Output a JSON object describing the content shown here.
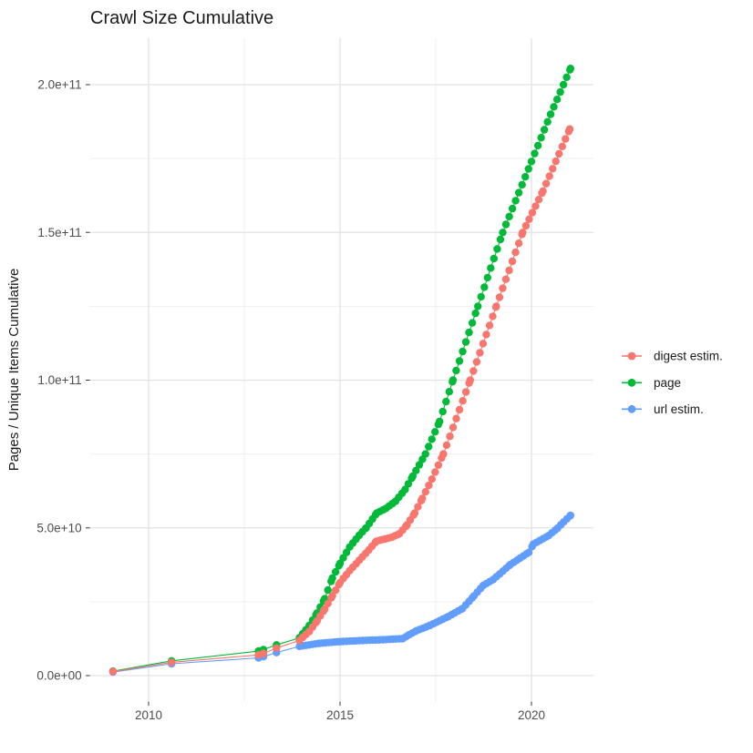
{
  "title": "Crawl Size Cumulative",
  "y_axis": {
    "label": "Pages / Unique Items Cumulative",
    "ticks": [
      {
        "label": "0.0e+00",
        "value": 0
      },
      {
        "label": "5.0e+10",
        "value": 50000000000.0
      },
      {
        "label": "1.0e+11",
        "value": 100000000000.0
      },
      {
        "label": "1.5e+11",
        "value": 150000000000.0
      },
      {
        "label": "2.0e+11",
        "value": 200000000000.0
      }
    ]
  },
  "x_axis": {
    "ticks": [
      {
        "label": "2010",
        "year": 2010
      },
      {
        "label": "2015",
        "year": 2015
      },
      {
        "label": "2020",
        "year": 2020
      }
    ],
    "minor_years": [
      2012.5,
      2017.5
    ]
  },
  "legend": {
    "items": [
      {
        "label": "digest estim.",
        "series": "digest estim.",
        "color": "#F8766D"
      },
      {
        "label": "page",
        "series": "page",
        "color": "#00BA38"
      },
      {
        "label": "url estim.",
        "series": "url estim.",
        "color": "#619CFF"
      }
    ]
  },
  "colors": {
    "digest": "#F8766D",
    "page": "#00BA38",
    "url": "#619CFF",
    "grid_major": "#e2e2e2",
    "grid_minor": "#efefef",
    "tick_mark": "#333333"
  },
  "chart_data": {
    "type": "scatter-line",
    "title": "Crawl Size Cumulative",
    "xlabel": "",
    "ylabel": "Pages / Unique Items Cumulative",
    "x_unit": "year (crawl date)",
    "xlim": [
      2008.47,
      2021.62
    ],
    "ylim": [
      0,
      215700000000.0
    ],
    "grid": true,
    "legend_position": "right",
    "dense_points_from": 2013.94,
    "dense_point_interval_years": 0.084,
    "series": [
      {
        "name": "digest estim.",
        "color": "#F8766D",
        "points": [
          [
            2009.07,
            1400000000.0
          ],
          [
            2010.6,
            4500000000.0
          ],
          [
            2012.87,
            7000000000.0
          ],
          [
            2013.0,
            7500000000.0
          ],
          [
            2013.34,
            9300000000.0
          ],
          [
            2013.94,
            11900000000.0
          ],
          [
            2014.2,
            15000000000.0
          ],
          [
            2014.4,
            18500000000.0
          ],
          [
            2014.6,
            22500000000.0
          ],
          [
            2014.8,
            27000000000.0
          ],
          [
            2015.0,
            31500000000.0
          ],
          [
            2015.25,
            35500000000.0
          ],
          [
            2015.5,
            39000000000.0
          ],
          [
            2015.75,
            42500000000.0
          ],
          [
            2015.95,
            45500000000.0
          ],
          [
            2016.1,
            46000000000.0
          ],
          [
            2016.35,
            46800000000.0
          ],
          [
            2016.55,
            48000000000.0
          ],
          [
            2016.75,
            51000000000.0
          ],
          [
            2016.95,
            55000000000.0
          ],
          [
            2017.15,
            60000000000.0
          ],
          [
            2017.4,
            66500000000.0
          ],
          [
            2017.7,
            75000000000.0
          ],
          [
            2018.4,
            100000000000.0
          ],
          [
            2019.08,
            125000000000.0
          ],
          [
            2019.77,
            150000000000.0
          ],
          [
            2020.3,
            164000000000.0
          ],
          [
            2021.0,
            185000000000.0
          ]
        ]
      },
      {
        "name": "page",
        "color": "#00BA38",
        "points": [
          [
            2009.07,
            1500000000.0
          ],
          [
            2010.6,
            5000000000.0
          ],
          [
            2012.87,
            8300000000.0
          ],
          [
            2013.0,
            8800000000.0
          ],
          [
            2013.34,
            10400000000.0
          ],
          [
            2013.94,
            12800000000.0
          ],
          [
            2014.2,
            17000000000.0
          ],
          [
            2014.4,
            21200000000.0
          ],
          [
            2014.6,
            26000000000.0
          ],
          [
            2014.8,
            33000000000.0
          ],
          [
            2015.0,
            38000000000.0
          ],
          [
            2015.25,
            43500000000.0
          ],
          [
            2015.5,
            47500000000.0
          ],
          [
            2015.68,
            50000000000.0
          ],
          [
            2015.96,
            55000000000.0
          ],
          [
            2016.2,
            56600000000.0
          ],
          [
            2016.45,
            59000000000.0
          ],
          [
            2016.7,
            63000000000.0
          ],
          [
            2016.9,
            67500000000.0
          ],
          [
            2017.23,
            75000000000.0
          ],
          [
            2017.6,
            86000000000.0
          ],
          [
            2017.95,
            100000000000.0
          ],
          [
            2018.6,
            125000000000.0
          ],
          [
            2019.25,
            150000000000.0
          ],
          [
            2020.0,
            174000000000.0
          ],
          [
            2020.5,
            190000000000.0
          ],
          [
            2021.02,
            205500000000.0
          ]
        ]
      },
      {
        "name": "url estim.",
        "color": "#619CFF",
        "points": [
          [
            2009.07,
            1200000000.0
          ],
          [
            2010.6,
            4000000000.0
          ],
          [
            2012.87,
            6000000000.0
          ],
          [
            2013.0,
            6400000000.0
          ],
          [
            2013.34,
            7800000000.0
          ],
          [
            2013.94,
            9900000000.0
          ],
          [
            2014.45,
            10900000000.0
          ],
          [
            2015.0,
            11500000000.0
          ],
          [
            2015.6,
            11900000000.0
          ],
          [
            2016.04,
            12100000000.0
          ],
          [
            2016.64,
            12500000000.0
          ],
          [
            2016.8,
            13800000000.0
          ],
          [
            2017.0,
            15200000000.0
          ],
          [
            2017.35,
            17000000000.0
          ],
          [
            2017.83,
            20000000000.0
          ],
          [
            2018.2,
            22700000000.0
          ],
          [
            2018.5,
            27000000000.0
          ],
          [
            2018.74,
            30500000000.0
          ],
          [
            2019.0,
            32500000000.0
          ],
          [
            2019.45,
            37600000000.0
          ],
          [
            2019.93,
            41700000000.0
          ],
          [
            2020.05,
            44500000000.0
          ],
          [
            2020.45,
            47400000000.0
          ],
          [
            2020.68,
            49900000000.0
          ],
          [
            2020.84,
            52000000000.0
          ],
          [
            2021.02,
            54200000000.0
          ]
        ]
      }
    ]
  }
}
